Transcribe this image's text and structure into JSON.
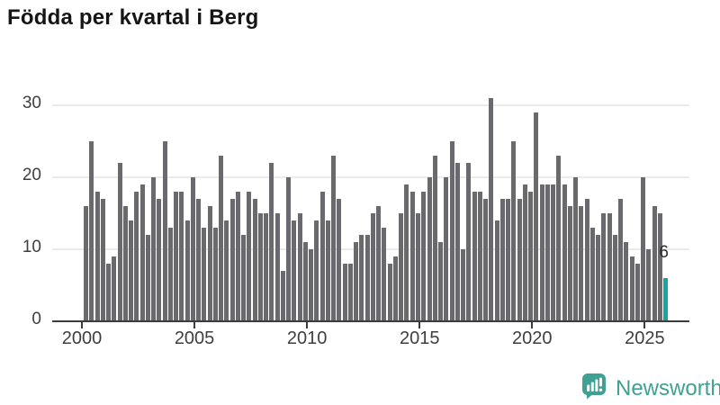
{
  "title": "Födda per kvartal i Berg",
  "chart_data": {
    "type": "bar",
    "title": "Födda per kvartal i Berg",
    "x_start": "2000-Q1",
    "x_freq": "quarterly",
    "x_tick_labels": [
      "2000",
      "2005",
      "2010",
      "2015",
      "2020",
      "2025"
    ],
    "y_tick_labels": [
      "0",
      "10",
      "20",
      "30"
    ],
    "ylim": [
      0,
      31
    ],
    "grid": "horizontal",
    "legend": "none",
    "series": [
      {
        "name": "Födda",
        "values": [
          16,
          25,
          18,
          17,
          8,
          9,
          22,
          16,
          14,
          18,
          19,
          12,
          20,
          17,
          25,
          13,
          18,
          18,
          14,
          20,
          17,
          13,
          16,
          13,
          23,
          14,
          17,
          18,
          12,
          18,
          17,
          15,
          15,
          22,
          15,
          7,
          20,
          14,
          15,
          11,
          10,
          14,
          18,
          14,
          23,
          17,
          8,
          8,
          11,
          12,
          12,
          15,
          16,
          13,
          8,
          9,
          15,
          19,
          18,
          15,
          18,
          20,
          23,
          11,
          20,
          25,
          22,
          10,
          22,
          18,
          18,
          17,
          31,
          14,
          17,
          17,
          25,
          17,
          19,
          18,
          29,
          19,
          19,
          19,
          23,
          19,
          16,
          20,
          16,
          17,
          13,
          12,
          15,
          15,
          12,
          17,
          11,
          9,
          8,
          20,
          10,
          16,
          15,
          6
        ]
      }
    ],
    "highlight": {
      "index": 103,
      "quarter": "2025-Q4",
      "value": 6,
      "label": "6"
    }
  },
  "colors": {
    "bar": "#6a6a6e",
    "highlight_bar": "#13a7a2",
    "gridline": "#ebebeb",
    "axis": "#3b3b40",
    "title_text": "#151515",
    "axis_text": "#3f3f3f",
    "logo": "#3ea193"
  },
  "logo": {
    "text": "Newsworthy",
    "icon": "bar-chart-speech-bubble"
  }
}
